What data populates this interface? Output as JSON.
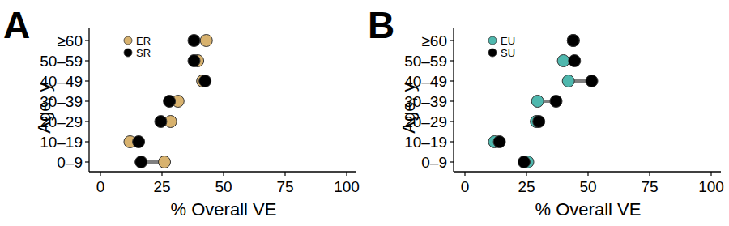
{
  "chart_data": [
    {
      "type": "dumbbell",
      "title": "A",
      "orientation": "horizontal",
      "xlabel": "% Overall VE",
      "ylabel": "Age, y",
      "categories": [
        "0–9",
        "10–19",
        "20–29",
        "30–39",
        "40–49",
        "50–59",
        "≥60"
      ],
      "series": [
        {
          "name": "ER",
          "color": "#d8b26e",
          "marker": "circle",
          "values": [
            26,
            12,
            28.5,
            31.5,
            41.5,
            39.5,
            43
          ]
        },
        {
          "name": "SR",
          "color": "#000000",
          "marker": "circle",
          "values": [
            16.5,
            15.5,
            24.5,
            28,
            42.5,
            38,
            38
          ]
        }
      ],
      "xlim": [
        0,
        100
      ],
      "xticks": [
        0,
        25,
        50,
        75,
        100
      ],
      "grid": false,
      "legend": "upper left"
    },
    {
      "type": "dumbbell",
      "title": "B",
      "orientation": "horizontal",
      "xlabel": "% Overall VE",
      "ylabel": "Age, y",
      "categories": [
        "0–9",
        "10–19",
        "20–29",
        "30–39",
        "40–49",
        "50–59",
        "≥60"
      ],
      "series": [
        {
          "name": "EU",
          "color": "#4fb8ae",
          "marker": "circle",
          "values": [
            25.5,
            12,
            29,
            29.5,
            42,
            40,
            44
          ]
        },
        {
          "name": "SU",
          "color": "#000000",
          "marker": "circle",
          "values": [
            24,
            14,
            30,
            37,
            51.5,
            44.5,
            44
          ]
        }
      ],
      "xlim": [
        0,
        100
      ],
      "xticks": [
        0,
        25,
        50,
        75,
        100
      ],
      "grid": false,
      "legend": "upper left"
    }
  ]
}
